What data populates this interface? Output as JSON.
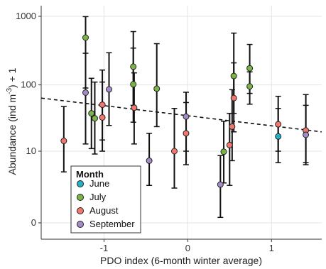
{
  "chart_data": {
    "type": "scatter",
    "title": "",
    "xlabel": "PDO index (6-month winter average)",
    "ylabel_main": "Abundance (ind m",
    "ylabel_sup": "-3",
    "ylabel_tail": ") + 1",
    "xlim": [
      -1.75,
      1.6
    ],
    "x_ticks": [
      {
        "value": -1,
        "label": "-1"
      },
      {
        "value": 0,
        "label": "0"
      },
      {
        "value": 1,
        "label": "1"
      }
    ],
    "y_scale": "log(y+1)",
    "y_ticks": [
      {
        "value": 0,
        "label": "0"
      },
      {
        "value": 10,
        "label": "10"
      },
      {
        "value": 100,
        "label": "100"
      },
      {
        "value": 1000,
        "label": "1000"
      }
    ],
    "grid": true,
    "legend": {
      "title": "Month",
      "position": "bottom-left",
      "entries": [
        {
          "label": "June",
          "color": "#1fb3c9"
        },
        {
          "label": "July",
          "color": "#7ab548"
        },
        {
          "label": "August",
          "color": "#f2776e"
        },
        {
          "label": "September",
          "color": "#a38bc7"
        }
      ]
    },
    "trend_line": {
      "x": [
        -1.75,
        1.6
      ],
      "y": [
        64,
        20
      ]
    },
    "points": [
      {
        "month": "August",
        "x": -1.48,
        "y": 14.5,
        "lo": 4.5,
        "hi": 48
      },
      {
        "month": "July",
        "x": -1.22,
        "y": 490,
        "lo": 90,
        "hi": 990
      },
      {
        "month": "September",
        "x": -1.22,
        "y": 77,
        "lo": 13,
        "hi": 290
      },
      {
        "month": "July",
        "x": -1.15,
        "y": 38,
        "lo": 11,
        "hi": 125
      },
      {
        "month": "July",
        "x": -1.11,
        "y": 32,
        "lo": 9,
        "hi": 110
      },
      {
        "month": "August",
        "x": -1.02,
        "y": 51,
        "lo": 15,
        "hi": 165
      },
      {
        "month": "August",
        "x": -1.02,
        "y": 33,
        "lo": 10,
        "hi": 110
      },
      {
        "month": "September",
        "x": -0.94,
        "y": 86,
        "lo": 25,
        "hi": 295
      },
      {
        "month": "July",
        "x": -0.65,
        "y": 185,
        "lo": 50,
        "hi": 600
      },
      {
        "month": "July",
        "x": -0.65,
        "y": 102,
        "lo": 28,
        "hi": 345
      },
      {
        "month": "August",
        "x": -0.64,
        "y": 46,
        "lo": 13,
        "hi": 150
      },
      {
        "month": "July",
        "x": -0.37,
        "y": 88,
        "lo": 24,
        "hi": 400
      },
      {
        "month": "September",
        "x": -0.46,
        "y": 7,
        "lo": 2.5,
        "hi": 19
      },
      {
        "month": "August",
        "x": -0.16,
        "y": 10,
        "lo": 2.2,
        "hi": 45
      },
      {
        "month": "September",
        "x": -0.02,
        "y": 34,
        "lo": 10,
        "hi": 78
      },
      {
        "month": "August",
        "x": -0.02,
        "y": 19,
        "lo": 6,
        "hi": 55
      },
      {
        "month": "September",
        "x": 0.39,
        "y": 2.6,
        "lo": 0.2,
        "hi": 8.5
      },
      {
        "month": "July",
        "x": 0.43,
        "y": 9.8,
        "lo": 2.8,
        "hi": 29
      },
      {
        "month": "August",
        "x": 0.5,
        "y": 12.5,
        "lo": 2.5,
        "hi": 38
      },
      {
        "month": "August",
        "x": 0.53,
        "y": 24,
        "lo": 7,
        "hi": 85
      },
      {
        "month": "August",
        "x": 0.55,
        "y": 64,
        "lo": 20,
        "hi": 210
      },
      {
        "month": "July",
        "x": 0.55,
        "y": 135,
        "lo": 38,
        "hi": 570
      },
      {
        "month": "July",
        "x": 0.74,
        "y": 175,
        "lo": 75,
        "hi": 390
      },
      {
        "month": "July",
        "x": 0.74,
        "y": 95,
        "lo": 52,
        "hi": 155
      },
      {
        "month": "August",
        "x": 1.08,
        "y": 26,
        "lo": 10,
        "hi": 68
      },
      {
        "month": "June",
        "x": 1.08,
        "y": 17,
        "lo": 6.5,
        "hi": 45
      },
      {
        "month": "August",
        "x": 1.41,
        "y": 21,
        "lo": 6.5,
        "hi": 72
      },
      {
        "month": "September",
        "x": 1.41,
        "y": 18,
        "lo": 6,
        "hi": 50
      }
    ]
  }
}
